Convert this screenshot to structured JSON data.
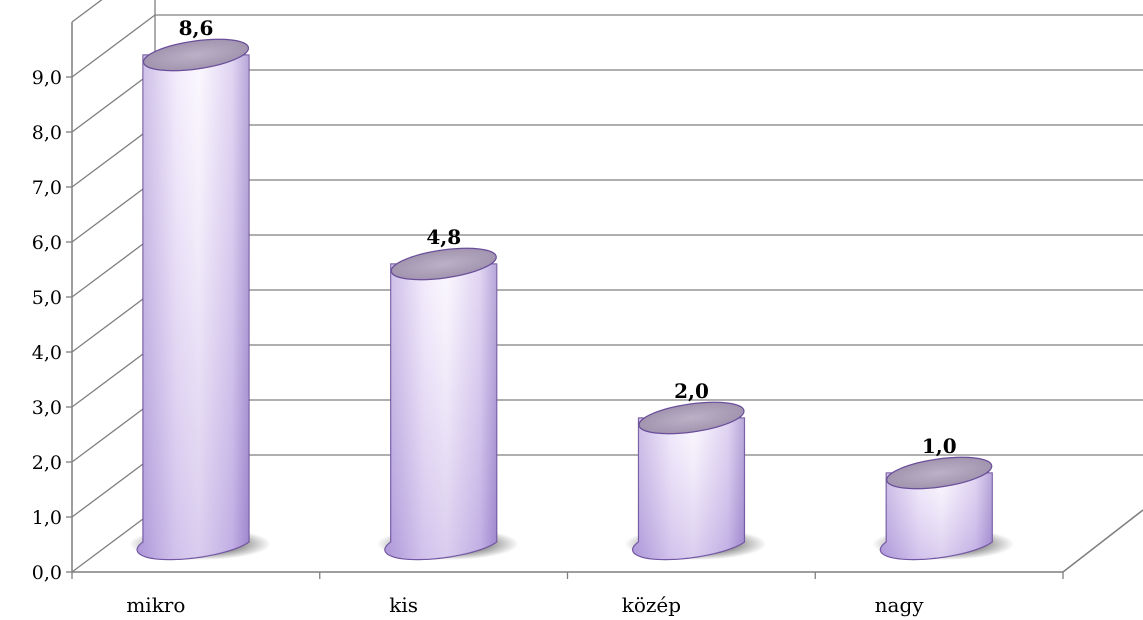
{
  "chart_data": {
    "type": "bar",
    "style": "3d-cylinder",
    "categories": [
      "mikro",
      "kis",
      "közép",
      "nagy"
    ],
    "values": [
      8.6,
      4.8,
      2.0,
      1.0
    ],
    "value_labels": [
      "8,6",
      "4,8",
      "2,0",
      "1,0"
    ],
    "ylim": [
      0,
      9
    ],
    "yticks": [
      0,
      1,
      2,
      3,
      4,
      5,
      6,
      7,
      8,
      9
    ],
    "ytick_labels": [
      "0,0",
      "1,0",
      "2,0",
      "3,0",
      "4,0",
      "5,0",
      "6,0",
      "7,0",
      "8,0",
      "9,0"
    ],
    "grid": true,
    "legend": "none",
    "colors": {
      "bar_light": "#f4eefc",
      "bar_mid": "#e3d6f3",
      "bar_dark": "#9a84c9",
      "bar_top": "#ad9fb8",
      "bar_outline": "#6a4e9a",
      "grid": "#7f7f7f"
    }
  }
}
